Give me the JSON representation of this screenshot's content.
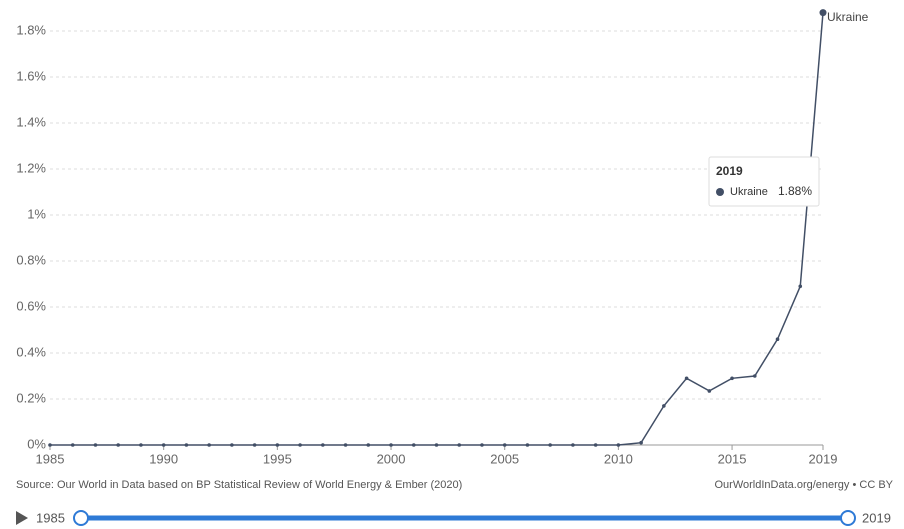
{
  "chart_data": {
    "type": "line",
    "x": [
      1985,
      1986,
      1987,
      1988,
      1989,
      1990,
      1991,
      1992,
      1993,
      1994,
      1995,
      1996,
      1997,
      1998,
      1999,
      2000,
      2001,
      2002,
      2003,
      2004,
      2005,
      2006,
      2007,
      2008,
      2009,
      2010,
      2011,
      2012,
      2013,
      2014,
      2015,
      2016,
      2017,
      2018,
      2019
    ],
    "series": [
      {
        "name": "Ukraine",
        "color": "#424f66",
        "values": [
          0,
          0,
          0,
          0,
          0,
          0,
          0,
          0,
          0,
          0,
          0,
          0,
          0,
          0,
          0,
          0,
          0,
          0,
          0,
          0,
          0,
          0,
          0,
          0,
          0,
          0,
          0.01,
          0.17,
          0.29,
          0.235,
          0.29,
          0.3,
          0.46,
          0.69,
          1.88
        ]
      }
    ],
    "xlim": [
      1985,
      2019
    ],
    "xticks": [
      1985,
      1990,
      1995,
      2000,
      2005,
      2010,
      2015,
      2019
    ],
    "ylim": [
      0,
      1.8
    ],
    "yticks": [
      {
        "value": 0,
        "label": "0%"
      },
      {
        "value": 0.2,
        "label": "0.2%"
      },
      {
        "value": 0.4,
        "label": "0.4%"
      },
      {
        "value": 0.6,
        "label": "0.6%"
      },
      {
        "value": 0.8,
        "label": "0.8%"
      },
      {
        "value": 1,
        "label": "1%"
      },
      {
        "value": 1.2,
        "label": "1.2%"
      },
      {
        "value": 1.4,
        "label": "1.4%"
      },
      {
        "value": 1.6,
        "label": "1.6%"
      },
      {
        "value": 1.8,
        "label": "1.8%"
      }
    ],
    "grid": true,
    "tooltip": {
      "value_label": "1.88%"
    },
    "source": "Source: Our World in Data based on BP Statistical Review of World Energy & Ember (2020)",
    "license": "OurWorldInData.org/energy • CC BY"
  }
}
